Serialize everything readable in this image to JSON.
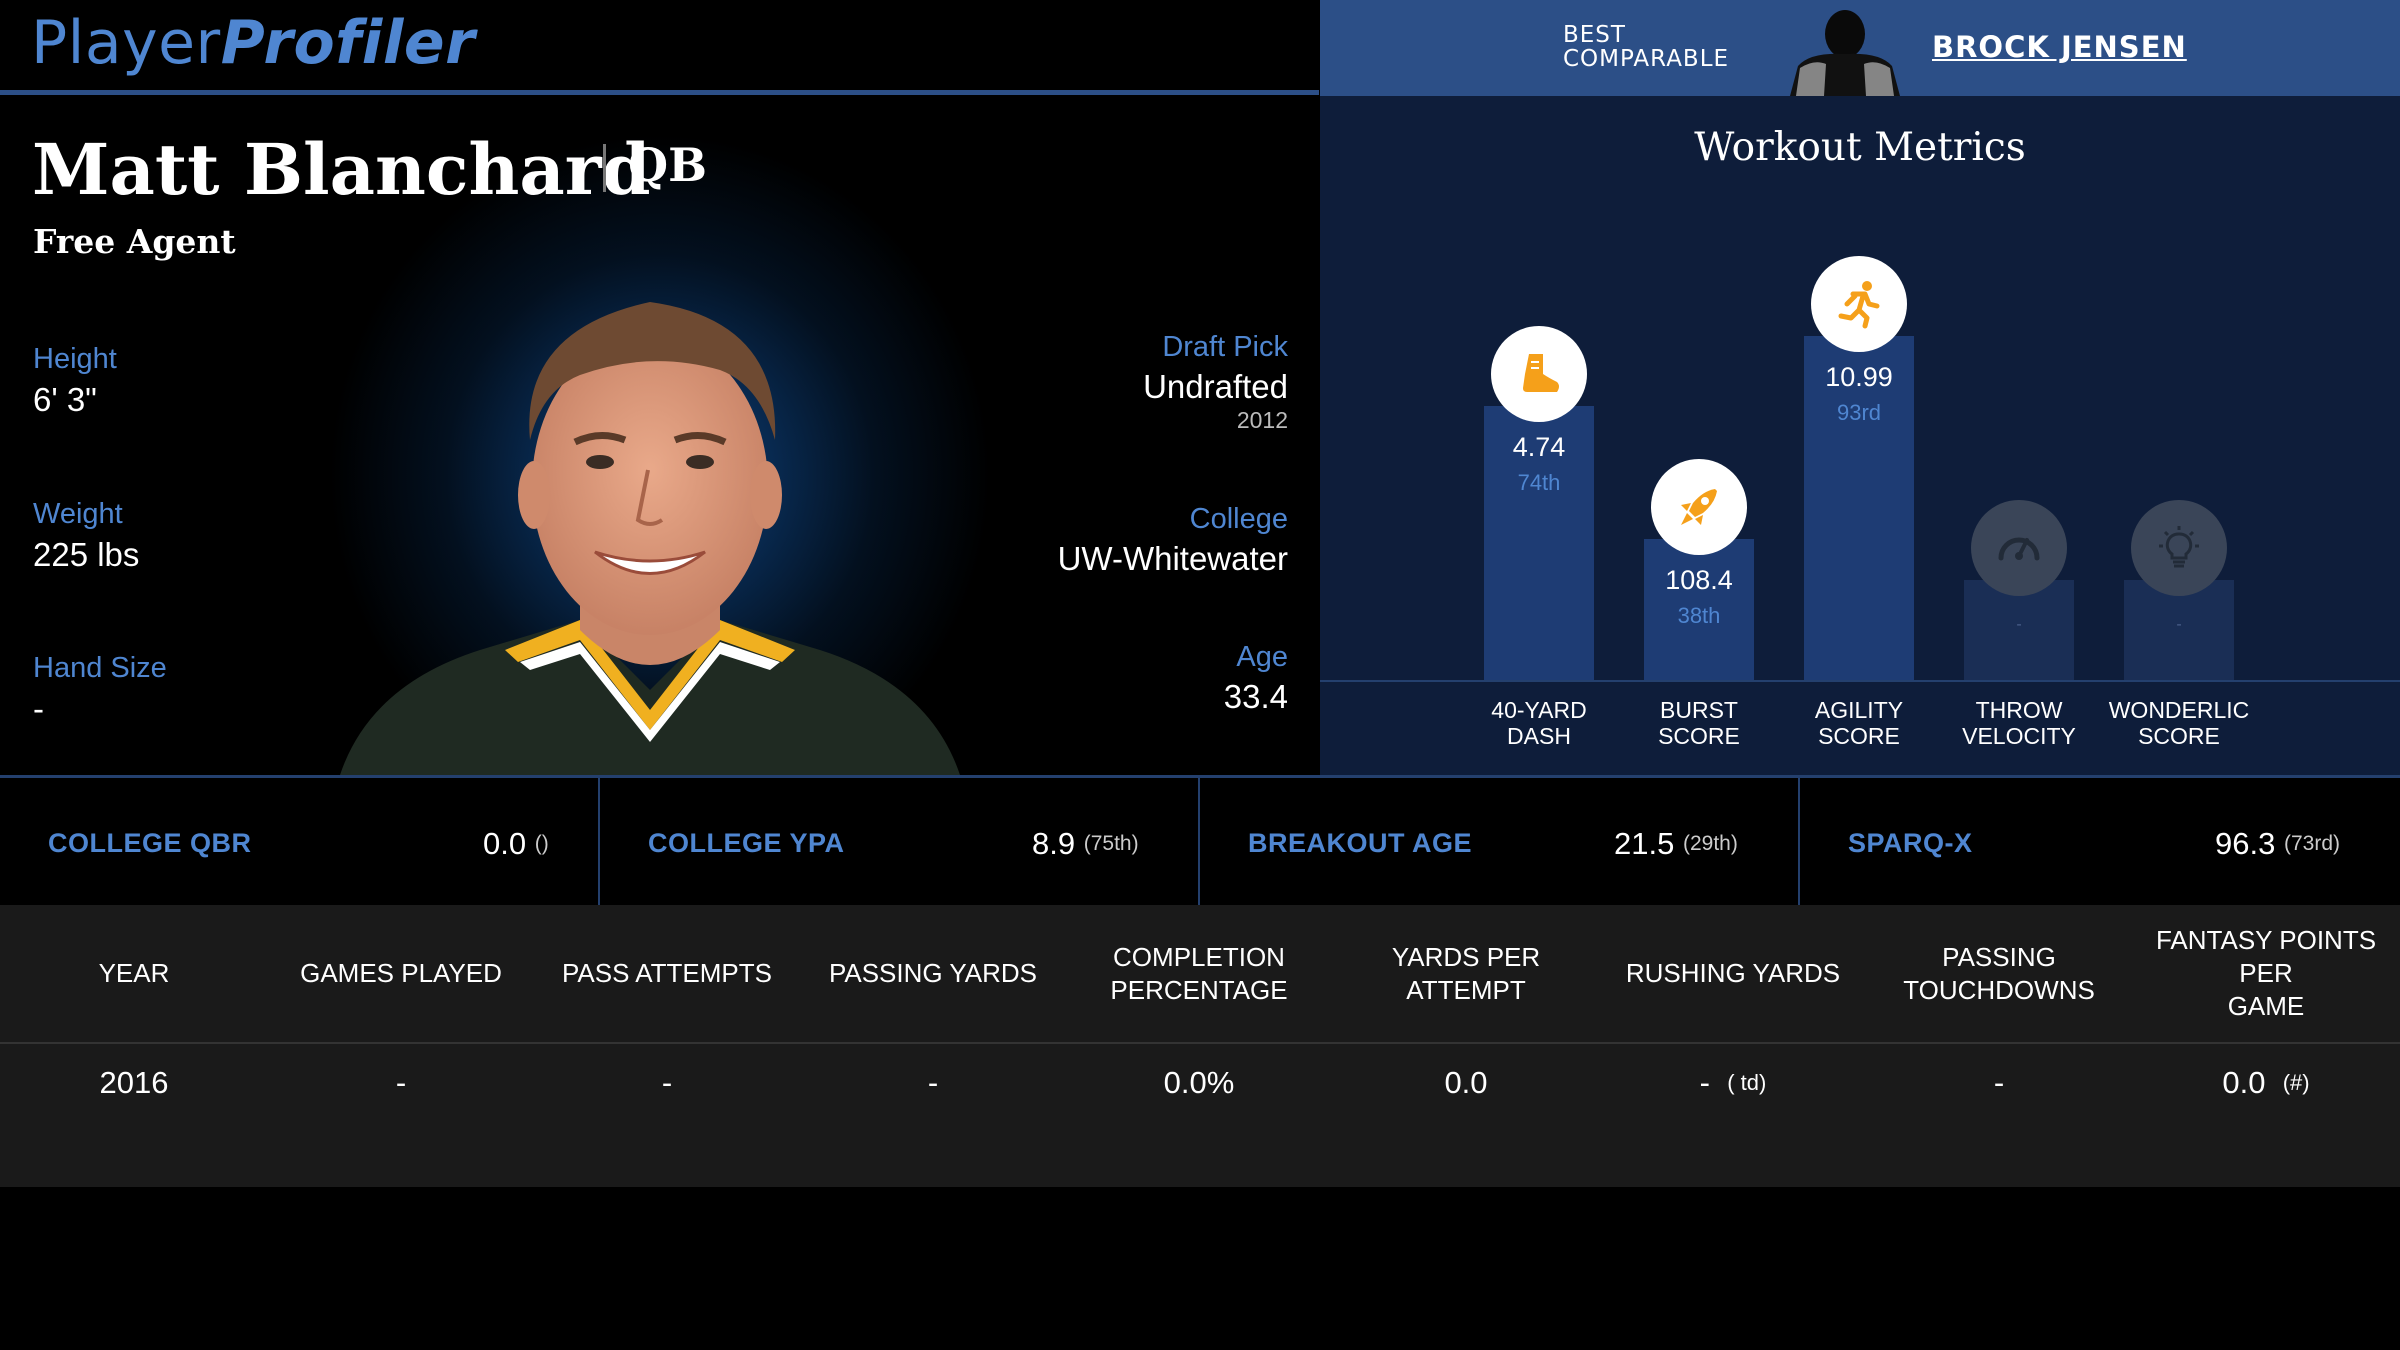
{
  "header": {
    "logo_part1": "Player",
    "logo_part2": "Profiler",
    "comparable_label_line1": "BEST",
    "comparable_label_line2": "COMPARABLE",
    "comparable_name": "BROCK JENSEN"
  },
  "player": {
    "name": "Matt Blanchard",
    "position": "QB",
    "team": "Free Agent",
    "height_label": "Height",
    "height": "6' 3\"",
    "weight_label": "Weight",
    "weight": "225 lbs",
    "hand_label": "Hand Size",
    "hand": "-",
    "draft_label": "Draft Pick",
    "draft": "Undrafted",
    "draft_year": "2012",
    "college_label": "College",
    "college": "UW-Whitewater",
    "age_label": "Age",
    "age": "33.4"
  },
  "workout": {
    "title": "Workout Metrics",
    "items": [
      {
        "label_line1": "40-YARD",
        "label_line2": "DASH",
        "value": "4.74",
        "percentile": "74th",
        "icon": "running-shoe-icon",
        "percentile_value": 74
      },
      {
        "label_line1": "BURST",
        "label_line2": "SCORE",
        "value": "108.4",
        "percentile": "38th",
        "icon": "rocket-icon",
        "percentile_value": 38
      },
      {
        "label_line1": "AGILITY",
        "label_line2": "SCORE",
        "value": "10.99",
        "percentile": "93rd",
        "icon": "running-person-icon",
        "percentile_value": 93
      },
      {
        "label_line1": "THROW",
        "label_line2": "VELOCITY",
        "value": "-",
        "percentile": "",
        "icon": "speedometer-icon",
        "percentile_value": null
      },
      {
        "label_line1": "WONDERLIC",
        "label_line2": "SCORE",
        "value": "-",
        "percentile": "",
        "icon": "lightbulb-icon",
        "percentile_value": null
      }
    ],
    "accent_color": "#f5a01a",
    "bar_color": "#1e3c74"
  },
  "metrics": [
    {
      "label": "COLLEGE QBR",
      "value": "0.0",
      "rank": "()"
    },
    {
      "label": "COLLEGE YPA",
      "value": "8.9",
      "rank": "(75th)"
    },
    {
      "label": "BREAKOUT AGE",
      "value": "21.5",
      "rank": "(29th)"
    },
    {
      "label": "SPARQ-X",
      "value": "96.3",
      "rank": "(73rd)"
    }
  ],
  "stats_table": {
    "headers": [
      [
        "YEAR"
      ],
      [
        "GAMES PLAYED"
      ],
      [
        "PASS ATTEMPTS"
      ],
      [
        "PASSING YARDS"
      ],
      [
        "COMPLETION",
        "PERCENTAGE"
      ],
      [
        "YARDS PER ATTEMPT"
      ],
      [
        "RUSHING YARDS"
      ],
      [
        "PASSING TOUCHDOWNS"
      ],
      [
        "FANTASY POINTS PER",
        "GAME"
      ]
    ],
    "row": {
      "year": "2016",
      "games": "-",
      "attempts": "-",
      "pass_yards": "-",
      "completion": "0.0%",
      "ypa": "0.0",
      "rush_yards": "-",
      "rush_td": "( td)",
      "pass_td": "-",
      "fantasy": "0.0",
      "fantasy_rank": "(#)"
    }
  },
  "colors": {
    "brand_blue": "#4f86d1",
    "header_blue": "#2c4f87",
    "panel_navy": "#0e1d3a"
  }
}
